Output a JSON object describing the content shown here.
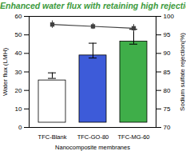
{
  "chart_data": {
    "type": "bar",
    "title": "Enhanced water flux with retaining high rejection",
    "title_color": "#3c9a3c",
    "x_label": "Nanocomposite membranes",
    "y_label": "Water flux (LMH)",
    "y2_label": "Sodium sulfate rejection(%)",
    "categories": [
      "TFC-Blank",
      "TFC-GO-80",
      "TFC-MG-60"
    ],
    "series": [
      {
        "type": "bar",
        "colors": [
          "#ffffff",
          "#3d5bd9",
          "#3fae49"
        ],
        "values": [
          28,
          41.5,
          49
        ],
        "errors": [
          1.5,
          4,
          4
        ]
      },
      {
        "type": "line",
        "axis": "y2",
        "color": "#404040",
        "marker": "square",
        "values": [
          97.8,
          97.3,
          96.8
        ],
        "errors": [
          1,
          0.8,
          1
        ]
      }
    ],
    "ylim": [
      0,
      60
    ],
    "yticks": [
      0,
      10,
      20,
      30,
      40,
      50,
      60
    ],
    "y2lim": [
      70,
      100
    ],
    "y2ticks": [
      70,
      75,
      80,
      85,
      90,
      95,
      100
    ],
    "grid": false
  }
}
